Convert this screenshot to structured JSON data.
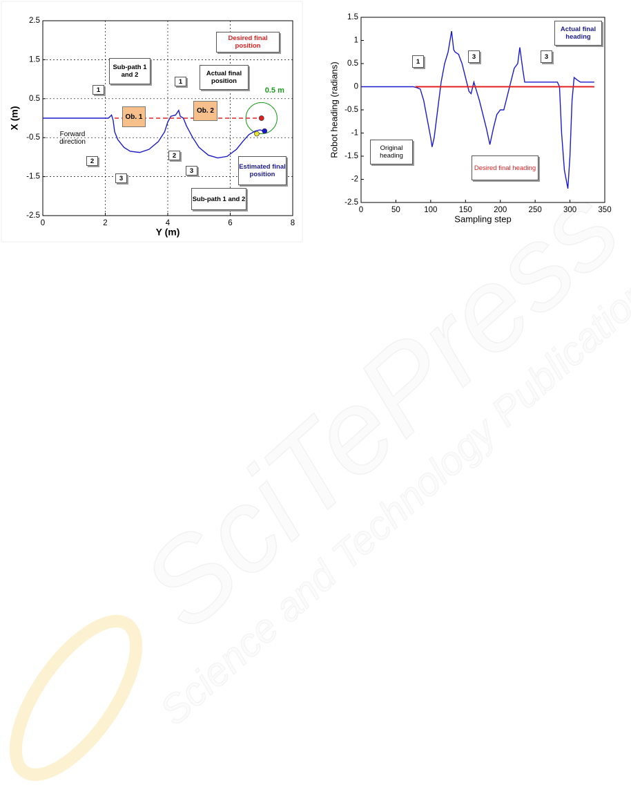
{
  "chart_data": [
    {
      "type": "line",
      "xlabel": "Y (m)",
      "ylabel": "X (m)",
      "xlim": [
        0,
        8
      ],
      "xticks": [
        0,
        2,
        4,
        6,
        8
      ],
      "ylim": [
        -2.5,
        2.5
      ],
      "yticks": [
        -2.5,
        -1.5,
        -0.5,
        0.5,
        1.5,
        2.5
      ],
      "grid": true,
      "series": [
        {
          "color": "#1a1acc",
          "x": [
            0,
            2.1,
            2.2,
            2.25,
            2.3,
            2.4,
            2.6,
            2.8,
            3.1,
            3.4,
            3.7,
            3.9,
            4.0,
            4.1,
            4.25,
            4.35,
            4.4,
            4.5,
            4.6,
            4.8,
            5.0,
            5.3,
            5.6,
            5.9,
            6.2,
            6.4,
            6.6,
            6.8,
            6.95,
            7.1
          ],
          "values": [
            0,
            0,
            0.08,
            -0.05,
            -0.35,
            -0.55,
            -0.75,
            -0.85,
            -0.88,
            -0.8,
            -0.6,
            -0.35,
            -0.1,
            0.05,
            0.08,
            0.2,
            0.05,
            0.0,
            -0.2,
            -0.5,
            -0.75,
            -0.95,
            -1.02,
            -0.98,
            -0.8,
            -0.6,
            -0.42,
            -0.33,
            -0.3,
            -0.33
          ]
        },
        {
          "color": "#e02020",
          "dashed": true,
          "x": [
            2.3,
            7.0
          ],
          "values": [
            0,
            0
          ]
        },
        {
          "color": "#1a1acc",
          "marker": true,
          "x": [
            7.1
          ],
          "values": [
            -0.33
          ]
        },
        {
          "color": "#f0e030",
          "marker": true,
          "x": [
            6.85
          ],
          "values": [
            -0.4
          ]
        },
        {
          "color": "#e02020",
          "marker": true,
          "x": [
            7.0
          ],
          "values": [
            0
          ]
        }
      ],
      "circle": {
        "value": 0.5,
        "label": "0.5 m"
      },
      "annotations": [
        "Desired final position",
        "Sub-path 1 and 2",
        "Actual final position",
        "1",
        "1",
        "Ob. 1",
        "Ob. 2",
        "Forward direction",
        "2",
        "2",
        "3",
        "3",
        "Estimated final position",
        "Sub-path 1 and 2"
      ]
    },
    {
      "type": "line",
      "xlabel": "Sampling step",
      "ylabel": "Robot heading (radians)",
      "xlim": [
        0,
        350
      ],
      "xticks": [
        0,
        50,
        100,
        150,
        200,
        250,
        300,
        350
      ],
      "ylim": [
        -2.5,
        1.5
      ],
      "yticks": [
        -2.5,
        -2,
        -1.5,
        -1,
        -0.5,
        0,
        0.5,
        1,
        1.5
      ],
      "grid": false,
      "series": [
        {
          "color": "#1a1acc",
          "x": [
            0,
            75,
            80,
            85,
            90,
            95,
            100,
            102,
            105,
            110,
            115,
            120,
            125,
            130,
            133,
            135,
            140,
            145,
            150,
            155,
            158,
            162,
            165,
            170,
            175,
            180,
            185,
            190,
            195,
            200,
            205,
            210,
            215,
            220,
            225,
            228,
            232,
            235,
            260,
            282,
            285,
            288,
            292,
            297,
            300,
            303,
            306,
            310,
            315,
            335
          ],
          "values": [
            0,
            0,
            -0.02,
            -0.05,
            -0.3,
            -0.7,
            -1.1,
            -1.3,
            -1.1,
            -0.5,
            0.1,
            0.5,
            0.75,
            1.2,
            0.8,
            0.75,
            0.7,
            0.5,
            0.2,
            -0.1,
            -0.15,
            0.1,
            -0.05,
            -0.3,
            -0.6,
            -0.9,
            -1.25,
            -0.9,
            -0.6,
            -0.5,
            -0.5,
            -0.2,
            0.1,
            0.4,
            0.5,
            0.85,
            0.4,
            0.1,
            0.1,
            0.1,
            0,
            -1,
            -1.8,
            -2.2,
            -1.5,
            -0.3,
            0.2,
            0.15,
            0.1,
            0.1
          ]
        },
        {
          "color": "#e02020",
          "x": [
            78,
            335
          ],
          "values": [
            0,
            0
          ]
        }
      ],
      "annotations": [
        "1",
        "3",
        "3",
        "Actual final heading",
        "Original heading",
        "Desired final heading"
      ]
    }
  ],
  "watermark": {
    "title": "SciTePress",
    "subtitle": "Science and Technology Publications"
  }
}
